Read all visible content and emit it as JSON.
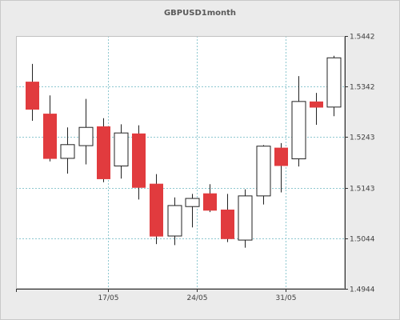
{
  "chart_data": {
    "type": "candlestick",
    "title": "GBPUSD1month",
    "xlabel": "",
    "ylabel": "",
    "ylim": [
      1.4944,
      1.5442
    ],
    "y_ticks": [
      "1.5442",
      "1.5342",
      "1.5243",
      "1.5143",
      "1.5044",
      "1.4944"
    ],
    "x_tick_labels": [
      {
        "label": "17/05",
        "index": 4.3
      },
      {
        "label": "24/05",
        "index": 9.3
      },
      {
        "label": "31/05",
        "index": 14.3
      }
    ],
    "grid": true,
    "colors": {
      "up": "#ffffff",
      "down": "#e13b3e",
      "outline": "#222222",
      "grid": "#8fc8d0",
      "plot_bg": "#ffffff"
    },
    "candles": [
      {
        "open": 1.5352,
        "high": 1.5387,
        "low": 1.5275,
        "close": 1.5297
      },
      {
        "open": 1.5289,
        "high": 1.5325,
        "low": 1.5195,
        "close": 1.52
      },
      {
        "open": 1.5201,
        "high": 1.5262,
        "low": 1.5171,
        "close": 1.5228
      },
      {
        "open": 1.5226,
        "high": 1.5318,
        "low": 1.5189,
        "close": 1.5262
      },
      {
        "open": 1.5264,
        "high": 1.528,
        "low": 1.5154,
        "close": 1.516
      },
      {
        "open": 1.5186,
        "high": 1.5268,
        "low": 1.5161,
        "close": 1.5251
      },
      {
        "open": 1.525,
        "high": 1.5266,
        "low": 1.512,
        "close": 1.5143
      },
      {
        "open": 1.5151,
        "high": 1.517,
        "low": 1.5032,
        "close": 1.5047
      },
      {
        "open": 1.5048,
        "high": 1.5124,
        "low": 1.503,
        "close": 1.5108
      },
      {
        "open": 1.5106,
        "high": 1.5131,
        "low": 1.5065,
        "close": 1.5122
      },
      {
        "open": 1.5132,
        "high": 1.515,
        "low": 1.5095,
        "close": 1.5098
      },
      {
        "open": 1.51,
        "high": 1.5131,
        "low": 1.5036,
        "close": 1.5042
      },
      {
        "open": 1.504,
        "high": 1.514,
        "low": 1.5025,
        "close": 1.5127
      },
      {
        "open": 1.5127,
        "high": 1.5227,
        "low": 1.511,
        "close": 1.5225
      },
      {
        "open": 1.5222,
        "high": 1.5231,
        "low": 1.5134,
        "close": 1.5186
      },
      {
        "open": 1.52,
        "high": 1.5363,
        "low": 1.5185,
        "close": 1.5313
      },
      {
        "open": 1.5313,
        "high": 1.533,
        "low": 1.5267,
        "close": 1.5301
      },
      {
        "open": 1.5302,
        "high": 1.5403,
        "low": 1.5284,
        "close": 1.5399
      }
    ]
  }
}
